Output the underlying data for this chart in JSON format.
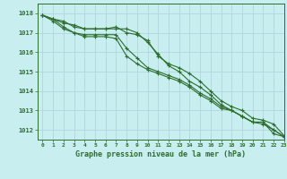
{
  "title": "Graphe pression niveau de la mer (hPa)",
  "background_color": "#c8eef0",
  "grid_color": "#aad4d8",
  "line_color": "#2d6e2d",
  "xlim": [
    -0.5,
    23
  ],
  "ylim": [
    1011.5,
    1018.5
  ],
  "yticks": [
    1012,
    1013,
    1014,
    1015,
    1016,
    1017,
    1018
  ],
  "xticks": [
    0,
    1,
    2,
    3,
    4,
    5,
    6,
    7,
    8,
    9,
    10,
    11,
    12,
    13,
    14,
    15,
    16,
    17,
    18,
    19,
    20,
    21,
    22,
    23
  ],
  "series": [
    [
      1017.9,
      1017.7,
      1017.6,
      1017.3,
      1017.2,
      1017.2,
      1017.2,
      1017.2,
      1017.2,
      1017.0,
      1016.5,
      1015.9,
      1015.3,
      1015.0,
      1014.5,
      1014.2,
      1013.8,
      1013.3,
      1013.0,
      1012.7,
      1012.4,
      1012.4,
      1011.8,
      1011.65
    ],
    [
      1017.9,
      1017.7,
      1017.3,
      1017.0,
      1016.9,
      1016.9,
      1016.9,
      1016.9,
      1016.2,
      1015.7,
      1015.2,
      1015.0,
      1014.8,
      1014.6,
      1014.3,
      1013.9,
      1013.6,
      1013.2,
      1013.0,
      1012.7,
      1012.4,
      1012.4,
      1012.0,
      1011.65
    ],
    [
      1017.9,
      1017.6,
      1017.2,
      1017.0,
      1016.8,
      1016.8,
      1016.8,
      1016.7,
      1015.8,
      1015.4,
      1015.1,
      1014.9,
      1014.7,
      1014.5,
      1014.2,
      1013.8,
      1013.5,
      1013.1,
      1013.0,
      1012.7,
      1012.4,
      1012.3,
      1012.0,
      1011.65
    ],
    [
      1017.9,
      1017.7,
      1017.5,
      1017.4,
      1017.2,
      1017.2,
      1017.2,
      1017.3,
      1017.0,
      1016.9,
      1016.6,
      1015.8,
      1015.4,
      1015.2,
      1014.9,
      1014.5,
      1014.0,
      1013.5,
      1013.2,
      1013.0,
      1012.6,
      1012.5,
      1012.3,
      1011.7
    ]
  ]
}
